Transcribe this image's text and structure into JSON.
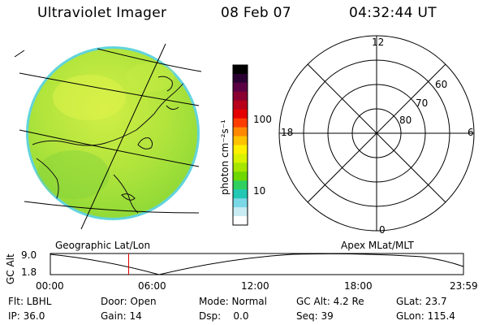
{
  "header": {
    "instrument": "Ultraviolet Imager",
    "date": "08 Feb 07",
    "time": "04:32:44 UT"
  },
  "colorbar": {
    "unit_label": "photon cm⁻²s⁻¹",
    "ticks": [
      "100",
      "10"
    ],
    "colors": [
      "#000000",
      "#2a0033",
      "#5c0044",
      "#8a0030",
      "#b8001a",
      "#e40000",
      "#ff3c00",
      "#ff8800",
      "#ffc200",
      "#fff000",
      "#d8f200",
      "#a6e600",
      "#6ed800",
      "#2fd060",
      "#22c8b4",
      "#7ad8e6",
      "#c8ecf2",
      "#ffffff"
    ]
  },
  "left_panel": {
    "label": "Geographic Lat/Lon",
    "disk_color": "#a8e23c",
    "disk_highlight": "#d0f044",
    "edge_color": "#5fd2e0"
  },
  "right_panel": {
    "label": "Apex MLat/MLT",
    "mlt_labels": {
      "top": "12",
      "left": "18",
      "right": "6",
      "bottom": "0"
    },
    "lat_labels": [
      "60",
      "70",
      "80"
    ]
  },
  "altitude_plot": {
    "ylabel": "GC Alt",
    "yticks": [
      "9.0",
      "1.8"
    ],
    "xticks": [
      "00:00",
      "06:00",
      "12:00",
      "18:00",
      "23:59"
    ],
    "marker_color": "#e00000",
    "current_hour": 4.55
  },
  "footer": {
    "row1": {
      "filter": "Flt: LBHL",
      "door": "Door: Open",
      "mode": "Mode: Normal",
      "gcalt": "GC Alt: 4.2 Re",
      "glat": "GLat: 23.7"
    },
    "row2": {
      "ip": "IP: 36.0",
      "gain": "Gain: 14",
      "dsp": "Dsp:    0.0",
      "seq": "Seq: 39",
      "glon": "GLon: 115.4"
    }
  }
}
